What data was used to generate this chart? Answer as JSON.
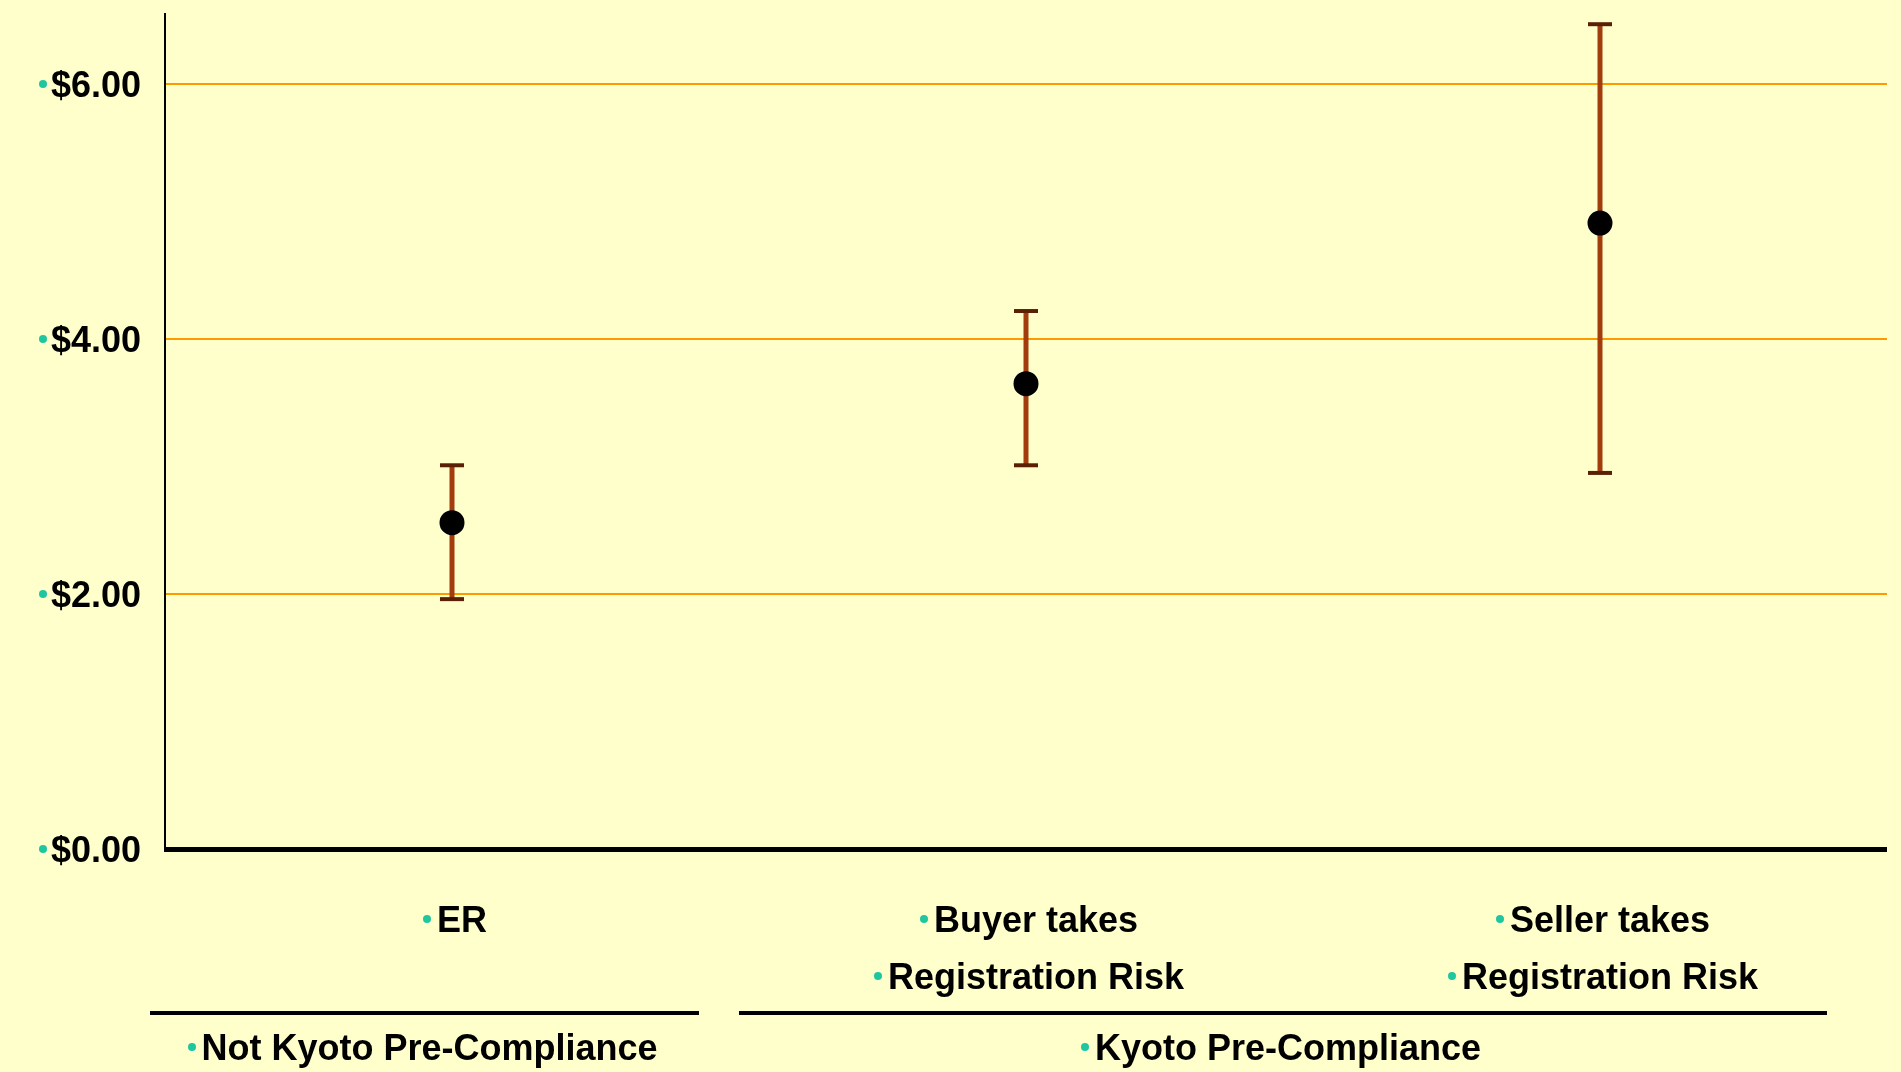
{
  "chart_data": {
    "type": "scatter",
    "categories": [
      "ER",
      "Buyer takes\nRegistration Risk",
      "Seller takes\nRegistration Risk"
    ],
    "values": [
      2.56,
      3.65,
      4.91
    ],
    "errors": [
      [
        1.96,
        3.01
      ],
      [
        3.01,
        4.22
      ],
      [
        2.95,
        6.47
      ]
    ],
    "color": "#000000",
    "marker": "circle",
    "grid": "y",
    "legend": false,
    "ylim": [
      0,
      6.55
    ],
    "yticks": [
      {
        "value": 0,
        "label": "$0.00"
      },
      {
        "value": 2,
        "label": "$2.00"
      },
      {
        "value": 4,
        "label": "$4.00"
      },
      {
        "value": 6,
        "label": "$6.00"
      }
    ],
    "annotations": [
      "Not Kyoto Pre-Compliance",
      "Kyoto Pre-Compliance"
    ]
  }
}
